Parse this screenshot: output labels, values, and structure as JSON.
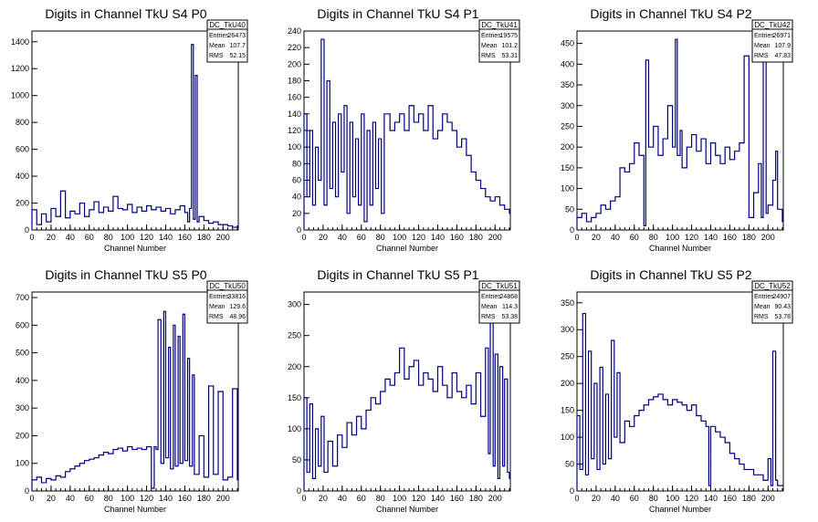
{
  "chart_data": [
    {
      "type": "line",
      "title": "Digits in Channel TkU S4 P0",
      "xlabel": "Channel Number",
      "ylabel": "",
      "xlim": [
        0,
        216
      ],
      "ylim": [
        0,
        1480
      ],
      "xticks": [
        0,
        20,
        40,
        60,
        80,
        100,
        120,
        140,
        160,
        180,
        200
      ],
      "yticks": [
        0,
        200,
        400,
        600,
        800,
        1000,
        1200,
        1400
      ],
      "stats": {
        "name": "DC_TkU40",
        "entries": "26473",
        "mean": "107.7",
        "rms": "52.15"
      },
      "series": [
        {
          "x": [
            0,
            5,
            10,
            15,
            20,
            25,
            30,
            35,
            40,
            45,
            50,
            55,
            60,
            65,
            70,
            75,
            80,
            85,
            90,
            95,
            100,
            105,
            110,
            115,
            120,
            125,
            130,
            135,
            140,
            145,
            150,
            155,
            160,
            163,
            165,
            167,
            169,
            171,
            173,
            175,
            180,
            185,
            190,
            195,
            200,
            205,
            210,
            215
          ],
          "values": [
            150,
            40,
            120,
            60,
            160,
            100,
            290,
            90,
            140,
            120,
            200,
            100,
            150,
            210,
            130,
            170,
            140,
            250,
            160,
            150,
            190,
            130,
            170,
            140,
            180,
            150,
            170,
            140,
            160,
            120,
            150,
            180,
            130,
            60,
            160,
            1380,
            80,
            1150,
            60,
            100,
            70,
            50,
            60,
            40,
            40,
            30,
            20,
            30
          ]
        }
      ]
    },
    {
      "type": "line",
      "title": "Digits in Channel TkU S4 P1",
      "xlabel": "Channel Number",
      "ylabel": "",
      "xlim": [
        0,
        216
      ],
      "ylim": [
        0,
        240
      ],
      "xticks": [
        0,
        20,
        40,
        60,
        80,
        100,
        120,
        140,
        160,
        180,
        200
      ],
      "yticks": [
        0,
        20,
        40,
        60,
        80,
        100,
        120,
        140,
        160,
        180,
        200,
        220,
        240
      ],
      "stats": {
        "name": "DC_TkU41",
        "entries": "19575",
        "mean": "101.2",
        "rms": "53.31"
      },
      "series": [
        {
          "x": [
            0,
            3,
            6,
            9,
            12,
            15,
            18,
            21,
            24,
            27,
            30,
            33,
            36,
            39,
            42,
            45,
            48,
            51,
            54,
            57,
            60,
            63,
            66,
            69,
            72,
            75,
            78,
            81,
            84,
            90,
            95,
            100,
            105,
            110,
            115,
            120,
            125,
            130,
            135,
            140,
            145,
            150,
            155,
            160,
            165,
            170,
            175,
            180,
            185,
            190,
            195,
            200,
            205,
            210,
            215
          ],
          "values": [
            140,
            40,
            120,
            30,
            100,
            60,
            230,
            30,
            180,
            50,
            130,
            40,
            140,
            70,
            150,
            20,
            130,
            40,
            110,
            30,
            140,
            10,
            120,
            30,
            130,
            50,
            110,
            20,
            140,
            120,
            130,
            140,
            120,
            150,
            130,
            140,
            120,
            150,
            110,
            120,
            140,
            130,
            120,
            100,
            110,
            90,
            70,
            60,
            50,
            40,
            35,
            40,
            30,
            25,
            20
          ]
        }
      ]
    },
    {
      "type": "line",
      "title": "Digits in Channel TkU S4 P2",
      "xlabel": "Channel Number",
      "ylabel": "",
      "xlim": [
        0,
        216
      ],
      "ylim": [
        0,
        480
      ],
      "xticks": [
        0,
        20,
        40,
        60,
        80,
        100,
        120,
        140,
        160,
        180,
        200
      ],
      "yticks": [
        0,
        50,
        100,
        150,
        200,
        250,
        300,
        350,
        400,
        450
      ],
      "stats": {
        "name": "DC_TkU42",
        "entries": "26971",
        "mean": "107.9",
        "rms": "47.83"
      },
      "series": [
        {
          "x": [
            0,
            5,
            10,
            15,
            20,
            25,
            30,
            35,
            40,
            45,
            50,
            55,
            60,
            65,
            70,
            72,
            75,
            80,
            85,
            90,
            95,
            100,
            103,
            105,
            108,
            110,
            115,
            120,
            125,
            130,
            135,
            140,
            145,
            150,
            155,
            160,
            165,
            170,
            175,
            180,
            185,
            190,
            193,
            195,
            198,
            200,
            205,
            208,
            210,
            215
          ],
          "values": [
            30,
            40,
            20,
            30,
            40,
            60,
            50,
            70,
            80,
            150,
            140,
            160,
            210,
            180,
            10,
            410,
            200,
            250,
            180,
            220,
            300,
            200,
            460,
            180,
            240,
            150,
            200,
            230,
            190,
            220,
            160,
            210,
            180,
            160,
            200,
            170,
            190,
            210,
            420,
            30,
            90,
            160,
            30,
            420,
            40,
            60,
            120,
            190,
            50,
            20
          ]
        }
      ]
    },
    {
      "type": "line",
      "title": "Digits in Channel TkU S5 P0",
      "xlabel": "Channel Number",
      "ylabel": "",
      "xlim": [
        0,
        216
      ],
      "ylim": [
        0,
        720
      ],
      "xticks": [
        0,
        20,
        40,
        60,
        80,
        100,
        120,
        140,
        160,
        180,
        200
      ],
      "yticks": [
        0,
        100,
        200,
        300,
        400,
        500,
        600,
        700
      ],
      "stats": {
        "name": "DC_TkU50",
        "entries": "33816",
        "mean": "129.6",
        "rms": "48.96"
      },
      "series": [
        {
          "x": [
            0,
            5,
            10,
            15,
            20,
            25,
            30,
            35,
            40,
            45,
            50,
            55,
            60,
            65,
            70,
            75,
            80,
            85,
            90,
            95,
            100,
            105,
            110,
            115,
            120,
            125,
            128,
            130,
            132,
            135,
            138,
            140,
            143,
            145,
            148,
            150,
            153,
            155,
            158,
            160,
            163,
            165,
            168,
            170,
            175,
            180,
            185,
            190,
            195,
            200,
            205,
            210,
            215
          ],
          "values": [
            40,
            50,
            30,
            45,
            40,
            55,
            50,
            70,
            80,
            90,
            100,
            110,
            115,
            120,
            130,
            140,
            135,
            150,
            155,
            145,
            160,
            150,
            155,
            150,
            160,
            10,
            160,
            150,
            620,
            100,
            650,
            120,
            520,
            80,
            600,
            90,
            560,
            100,
            640,
            110,
            480,
            90,
            420,
            60,
            200,
            50,
            380,
            60,
            360,
            40,
            50,
            370,
            40
          ]
        }
      ]
    },
    {
      "type": "line",
      "title": "Digits in Channel TkU S5 P1",
      "xlabel": "Channel Number",
      "ylabel": "",
      "xlim": [
        0,
        216
      ],
      "ylim": [
        0,
        320
      ],
      "xticks": [
        0,
        20,
        40,
        60,
        80,
        100,
        120,
        140,
        160,
        180,
        200
      ],
      "yticks": [
        0,
        50,
        100,
        150,
        200,
        250,
        300
      ],
      "stats": {
        "name": "DC_TkU51",
        "entries": "24868",
        "mean": "114.3",
        "rms": "53.38"
      },
      "series": [
        {
          "x": [
            0,
            3,
            6,
            9,
            12,
            15,
            18,
            21,
            25,
            30,
            35,
            40,
            45,
            50,
            55,
            60,
            65,
            70,
            75,
            80,
            85,
            90,
            95,
            100,
            105,
            110,
            115,
            120,
            125,
            130,
            135,
            140,
            145,
            150,
            155,
            160,
            165,
            170,
            175,
            180,
            185,
            190,
            193,
            195,
            198,
            200,
            203,
            205,
            208,
            210,
            213,
            215
          ],
          "values": [
            150,
            30,
            140,
            20,
            100,
            40,
            120,
            30,
            80,
            40,
            90,
            70,
            110,
            90,
            120,
            100,
            130,
            150,
            140,
            160,
            180,
            170,
            190,
            230,
            180,
            200,
            210,
            170,
            190,
            180,
            160,
            200,
            170,
            150,
            190,
            160,
            150,
            170,
            140,
            190,
            120,
            230,
            60,
            280,
            40,
            220,
            20,
            200,
            40,
            180,
            30,
            20
          ]
        }
      ]
    },
    {
      "type": "line",
      "title": "Digits in Channel TkU S5 P2",
      "xlabel": "Channel Number",
      "ylabel": "",
      "xlim": [
        0,
        216
      ],
      "ylim": [
        0,
        370
      ],
      "xticks": [
        0,
        20,
        40,
        60,
        80,
        100,
        120,
        140,
        160,
        180,
        200
      ],
      "yticks": [
        0,
        50,
        100,
        150,
        200,
        250,
        300,
        350
      ],
      "stats": {
        "name": "DC_TkU52",
        "entries": "24907",
        "mean": "90.43",
        "rms": "53.78"
      },
      "series": [
        {
          "x": [
            0,
            3,
            6,
            9,
            12,
            15,
            18,
            21,
            24,
            27,
            30,
            33,
            36,
            39,
            42,
            45,
            50,
            55,
            60,
            65,
            70,
            75,
            80,
            85,
            90,
            95,
            100,
            105,
            110,
            115,
            120,
            125,
            130,
            135,
            138,
            140,
            145,
            150,
            155,
            160,
            165,
            170,
            175,
            180,
            185,
            190,
            195,
            200,
            203,
            205,
            208,
            210
          ],
          "values": [
            140,
            40,
            330,
            30,
            260,
            60,
            200,
            40,
            230,
            50,
            180,
            60,
            280,
            100,
            220,
            90,
            130,
            120,
            140,
            150,
            160,
            170,
            175,
            180,
            170,
            160,
            170,
            165,
            160,
            150,
            160,
            140,
            130,
            120,
            10,
            120,
            110,
            100,
            90,
            70,
            60,
            50,
            40,
            40,
            30,
            30,
            20,
            60,
            10,
            260,
            20,
            10
          ]
        }
      ]
    }
  ]
}
